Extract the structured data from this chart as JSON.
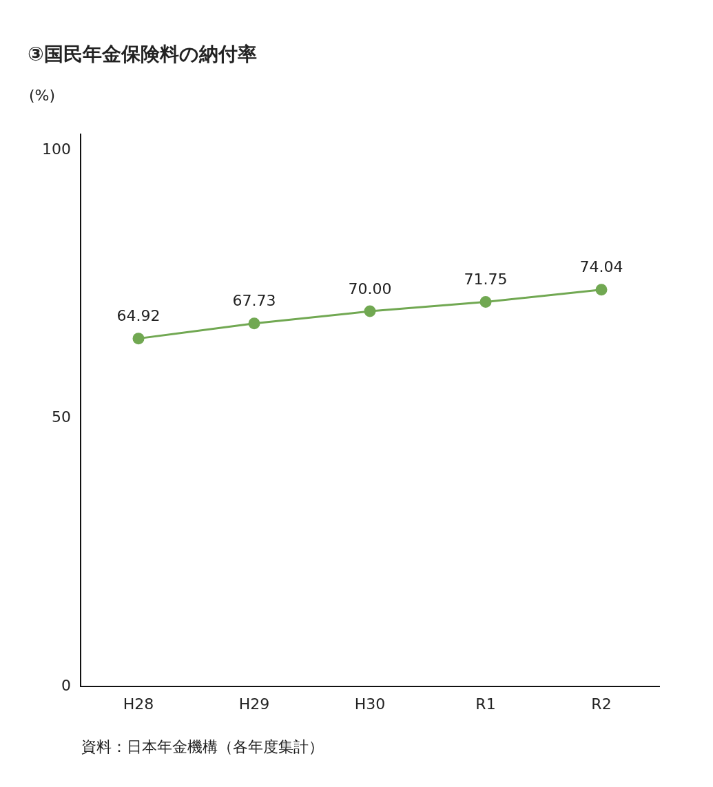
{
  "chart_data": {
    "type": "line",
    "title": "③国民年金保険料の納付率",
    "ylabel": "(%)",
    "categories": [
      "H28",
      "H29",
      "H30",
      "R1",
      "R2"
    ],
    "series": [
      {
        "color": "#71a852",
        "values": [
          64.92,
          67.73,
          70.0,
          71.75,
          74.04
        ],
        "value_labels": [
          "64.92",
          "67.73",
          "70.00",
          "71.75",
          "74.04"
        ]
      }
    ],
    "ylim": [
      0,
      103
    ],
    "yticks": [
      0,
      50,
      100
    ],
    "grid": false,
    "legend": false,
    "marker": "circle",
    "line_style": "solid",
    "annotations": [
      "資料：日本年金機構（各年度集計）"
    ]
  }
}
